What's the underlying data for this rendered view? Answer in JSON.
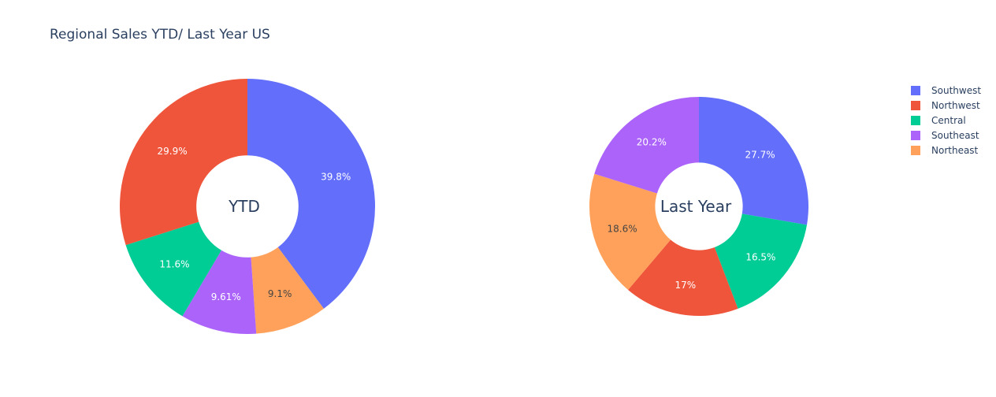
{
  "title": "Regional Sales YTD/ Last Year US",
  "colors": {
    "Southwest": "#636efa",
    "Northwest": "#ef553b",
    "Central": "#00cc96",
    "Southeast": "#ab63fa",
    "Northeast": "#ffa15a"
  },
  "legend": [
    "Southwest",
    "Northwest",
    "Central",
    "Southeast",
    "Northeast"
  ],
  "chart_data": [
    {
      "type": "pie",
      "hole_label": "YTD",
      "slices": [
        {
          "name": "Southwest",
          "value": 39.8,
          "label": "39.8%"
        },
        {
          "name": "Northeast",
          "value": 9.1,
          "label": "9.1%"
        },
        {
          "name": "Southeast",
          "value": 9.61,
          "label": "9.61%"
        },
        {
          "name": "Central",
          "value": 11.6,
          "label": "11.6%"
        },
        {
          "name": "Northwest",
          "value": 29.9,
          "label": "29.9%"
        }
      ]
    },
    {
      "type": "pie",
      "hole_label": "Last Year",
      "slices": [
        {
          "name": "Southwest",
          "value": 27.7,
          "label": "27.7%"
        },
        {
          "name": "Central",
          "value": 16.5,
          "label": "16.5%"
        },
        {
          "name": "Northwest",
          "value": 17,
          "label": "17%"
        },
        {
          "name": "Northeast",
          "value": 18.6,
          "label": "18.6%"
        },
        {
          "name": "Southeast",
          "value": 20.2,
          "label": "20.2%"
        }
      ]
    }
  ]
}
